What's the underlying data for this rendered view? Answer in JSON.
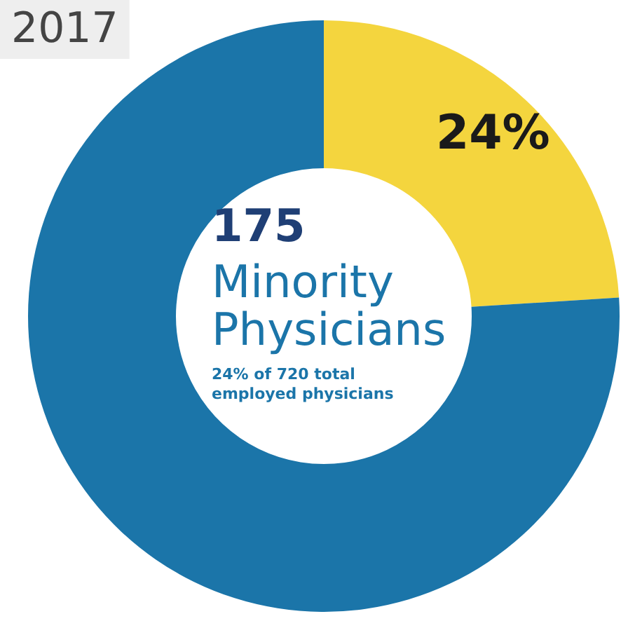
{
  "chart_data": {
    "type": "donut",
    "title": "2017",
    "categories": [
      null,
      null
    ],
    "values": [
      24,
      76
    ],
    "colors": [
      "#f4d53e",
      "#1b75a9"
    ],
    "value_labels": [
      "24%",
      null
    ],
    "annotations": [
      "175",
      "Minority Physicians",
      "24% of 720 total employed physicians"
    ],
    "legend": false
  }
}
